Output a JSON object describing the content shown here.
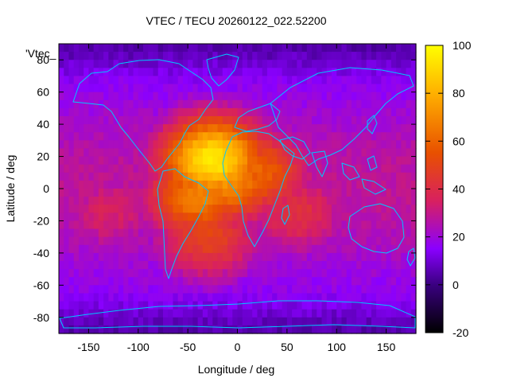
{
  "chart_data": {
    "type": "heatmap",
    "title": "VTEC / TECU 20260122_022.52200",
    "xlabel": "Longitude / deg",
    "ylabel": "Latitude / deg",
    "xlim": [
      -180,
      180
    ],
    "ylim": [
      -90,
      90
    ],
    "x_ticks": [
      "-150",
      "-100",
      "-50",
      "0",
      "50",
      "100",
      "150"
    ],
    "y_ticks": [
      "80",
      "60",
      "40",
      "20",
      "0",
      "-20",
      "-40",
      "-60",
      "-80"
    ],
    "colorbar": {
      "range": [
        -20,
        100
      ],
      "ticks": [
        "100",
        "80",
        "60",
        "40",
        "20",
        "0",
        "-20"
      ],
      "colors": [
        "#000000",
        "#3a0080",
        "#8a00ff",
        "#d82060",
        "#e85000",
        "#ffb000",
        "#ffff00"
      ],
      "color_stops": [
        -20,
        0,
        15,
        35,
        55,
        80,
        100
      ]
    },
    "legend_label": "'Vtec_",
    "grid": false,
    "cells_note": "VTEC field: max ~95 TECU near (20W,15N) over tropical Atlantic/Africa; ~45-55 TECU band from 30S to 25N between 90W and 60E; ~20-30 TECU elsewhere at mid/low latitudes; ~5-15 TECU at high latitudes and polar regions",
    "field_peaks": [
      {
        "lon": -25,
        "lat": 18,
        "value": 95
      },
      {
        "lon": -10,
        "lat": 5,
        "value": 72
      },
      {
        "lon": -40,
        "lat": -5,
        "value": 68
      },
      {
        "lon": 20,
        "lat": 10,
        "value": 60
      },
      {
        "lon": -30,
        "lat": -30,
        "value": 50
      },
      {
        "lon": 60,
        "lat": -15,
        "value": 42
      },
      {
        "lon": -130,
        "lat": -15,
        "value": 35
      },
      {
        "lon": 130,
        "lat": 5,
        "value": 28
      }
    ]
  }
}
